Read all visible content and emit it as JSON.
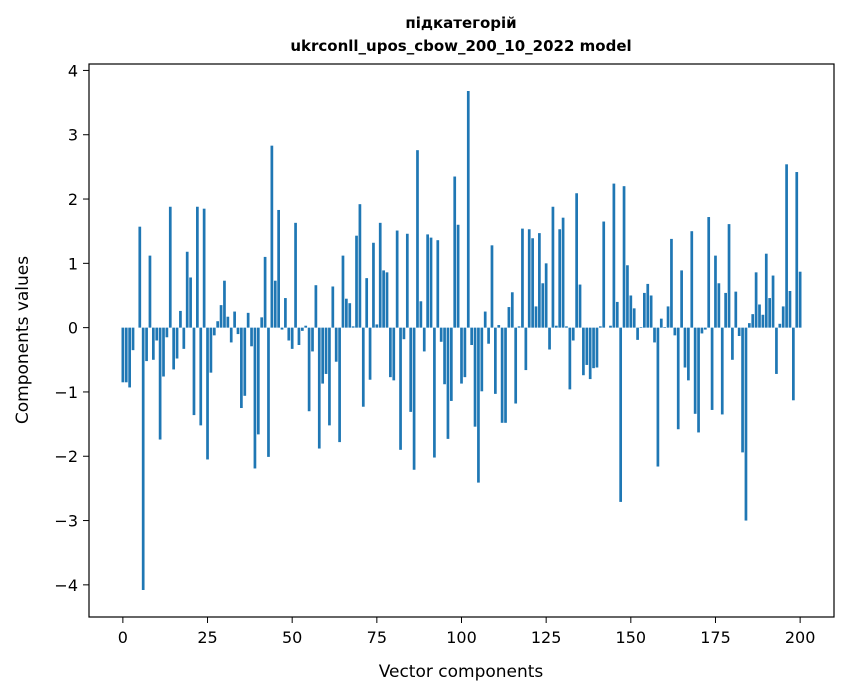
{
  "colors": {
    "bar": "#1f77b4",
    "axis": "#000000",
    "background": "#ffffff"
  },
  "chart_data": {
    "type": "bar",
    "title": "підкатегорій",
    "subtitle": "ukrconll_upos_cbow_200_10_2022 model",
    "xlabel": "Vector components",
    "ylabel": "Components values",
    "xlim": [
      -10,
      210
    ],
    "ylim": [
      -4.5,
      4.1
    ],
    "xticks": [
      0,
      25,
      50,
      75,
      100,
      125,
      150,
      175,
      200
    ],
    "yticks": [
      -4,
      -3,
      -2,
      -1,
      0,
      1,
      2,
      3,
      4
    ],
    "ytick_labels": [
      "−4",
      "−3",
      "−2",
      "−1",
      "0",
      "1",
      "2",
      "3",
      "4"
    ],
    "series": [
      {
        "name": "components",
        "values": [
          -0.85,
          -0.85,
          -0.93,
          -0.35,
          0.0,
          1.57,
          -4.08,
          -0.52,
          1.12,
          -0.5,
          -0.2,
          -1.74,
          -0.76,
          -0.15,
          1.88,
          -0.65,
          -0.48,
          0.26,
          -0.33,
          1.18,
          0.78,
          -1.36,
          1.88,
          -1.52,
          1.85,
          -2.05,
          -0.7,
          -0.12,
          0.1,
          0.35,
          0.73,
          0.17,
          -0.23,
          0.25,
          -0.1,
          -1.25,
          -1.06,
          0.23,
          -0.29,
          -2.19,
          -1.66,
          0.16,
          1.1,
          -2.01,
          2.83,
          0.73,
          1.83,
          -0.03,
          0.46,
          -0.2,
          -0.33,
          1.63,
          -0.27,
          -0.05,
          0.03,
          -1.3,
          -0.37,
          0.66,
          -1.88,
          -0.87,
          -0.72,
          -1.52,
          0.64,
          -0.53,
          -1.78,
          1.12,
          0.45,
          0.38,
          0.02,
          1.43,
          1.92,
          -1.23,
          0.77,
          -0.81,
          1.32,
          0.05,
          1.63,
          0.89,
          0.86,
          -0.77,
          -0.82,
          1.51,
          -1.9,
          -0.18,
          1.46,
          -1.31,
          -2.21,
          2.76,
          0.41,
          -0.37,
          1.45,
          1.4,
          -2.02,
          1.36,
          -0.22,
          -0.88,
          -1.73,
          -1.14,
          2.35,
          1.6,
          -0.87,
          -0.77,
          3.68,
          -0.27,
          -1.54,
          -2.41,
          -0.99,
          0.25,
          -0.25,
          1.28,
          -1.03,
          0.04,
          -1.48,
          -1.48,
          0.32,
          0.55,
          -1.18,
          0.02,
          1.54,
          -0.66,
          1.53,
          1.39,
          0.33,
          1.47,
          0.69,
          1.0,
          -0.34,
          1.88,
          0.03,
          1.53,
          1.71,
          0.02,
          -0.96,
          -0.2,
          2.09,
          0.67,
          -0.74,
          -0.58,
          -0.8,
          -0.63,
          -0.62,
          0.02,
          1.65,
          0.0,
          0.03,
          2.24,
          0.4,
          -2.71,
          2.2,
          0.97,
          0.5,
          0.3,
          -0.19,
          0.01,
          0.54,
          0.68,
          0.5,
          -0.23,
          -2.16,
          0.14,
          0.01,
          0.33,
          1.38,
          -0.12,
          -1.58,
          0.89,
          -0.62,
          -0.82,
          1.5,
          -1.34,
          -1.63,
          -0.09,
          -0.03,
          1.72,
          -1.28,
          1.12,
          0.69,
          -1.35,
          0.54,
          1.61,
          -0.5,
          0.56,
          -0.13,
          -1.94,
          -3.0,
          0.07,
          0.21,
          0.86,
          0.36,
          0.2,
          1.15,
          0.46,
          0.81,
          -0.72,
          0.06,
          0.33,
          2.54,
          0.57,
          -1.13,
          2.42,
          0.87
        ]
      }
    ]
  }
}
